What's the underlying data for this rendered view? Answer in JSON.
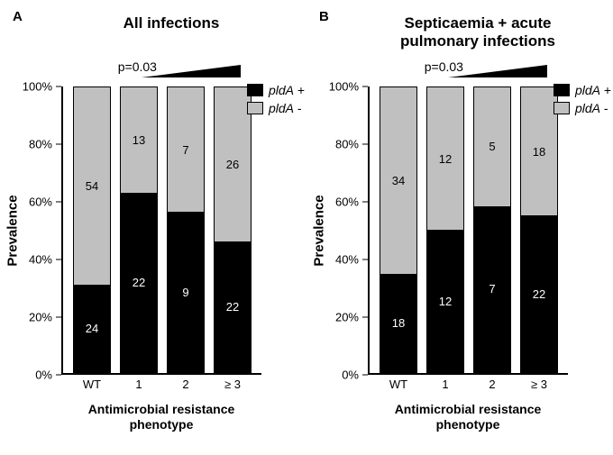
{
  "panels": [
    {
      "letter": "A",
      "title_lines": [
        "All infections"
      ],
      "pvalue": "p=0.03",
      "y_label": "Prevalence",
      "x_label_lines": [
        "Antimicrobial resistance",
        "phenotype"
      ],
      "y_ticks": [
        "100%",
        "80%",
        "60%",
        "40%",
        "20%",
        "0%"
      ],
      "y_tick_vals": [
        100,
        80,
        60,
        40,
        20,
        0
      ],
      "categories": [
        "WT",
        "1",
        "2",
        "≥ 3"
      ],
      "top_counts": [
        54,
        13,
        7,
        26
      ],
      "bottom_counts": [
        24,
        22,
        9,
        22
      ],
      "bottom_pct": [
        30.8,
        62.9,
        56.3,
        45.8
      ],
      "colors": {
        "top": "#c0c0c0",
        "bottom": "#000000",
        "border": "#000000",
        "bg": "#ffffff"
      },
      "wedge_width": 110,
      "wedge_height": 14,
      "legend": [
        {
          "swatch": "#000000",
          "text_italic": "pldA",
          "text_suffix": " +"
        },
        {
          "swatch": "#c0c0c0",
          "text_italic": "pldA",
          "text_suffix": " -"
        }
      ]
    },
    {
      "letter": "B",
      "title_lines": [
        "Septicaemia + acute",
        "pulmonary infections"
      ],
      "pvalue": "p=0.03",
      "y_label": "Prevalence",
      "x_label_lines": [
        "Antimicrobial resistance",
        "phenotype"
      ],
      "y_ticks": [
        "100%",
        "80%",
        "60%",
        "40%",
        "20%",
        "0%"
      ],
      "y_tick_vals": [
        100,
        80,
        60,
        40,
        20,
        0
      ],
      "categories": [
        "WT",
        "1",
        "2",
        "≥ 3"
      ],
      "top_counts": [
        34,
        12,
        5,
        18
      ],
      "bottom_counts": [
        18,
        12,
        7,
        22
      ],
      "bottom_pct": [
        34.6,
        50.0,
        58.3,
        55.0
      ],
      "colors": {
        "top": "#c0c0c0",
        "bottom": "#000000",
        "border": "#000000",
        "bg": "#ffffff"
      },
      "wedge_width": 110,
      "wedge_height": 14,
      "legend": [
        {
          "swatch": "#000000",
          "text_italic": "pldA",
          "text_suffix": " +"
        },
        {
          "swatch": "#c0c0c0",
          "text_italic": "pldA",
          "text_suffix": " -"
        }
      ]
    }
  ],
  "fontsizes": {
    "title": 17,
    "axis_label": 15,
    "tick": 13,
    "seg_label": 13,
    "pvalue": 14,
    "legend": 14,
    "panel_letter": 15
  },
  "ylim": [
    0,
    100
  ]
}
